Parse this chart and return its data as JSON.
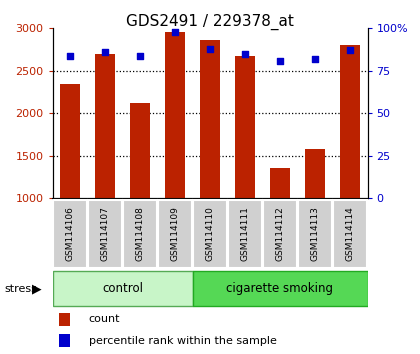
{
  "title": "GDS2491 / 229378_at",
  "samples": [
    "GSM114106",
    "GSM114107",
    "GSM114108",
    "GSM114109",
    "GSM114110",
    "GSM114111",
    "GSM114112",
    "GSM114113",
    "GSM114114"
  ],
  "counts": [
    2340,
    2700,
    2120,
    2960,
    2860,
    2680,
    1360,
    1580,
    2800
  ],
  "percentiles": [
    84,
    86,
    84,
    98,
    88,
    85,
    81,
    82,
    87
  ],
  "ctrl_count": 4,
  "smoke_count": 5,
  "group_labels": [
    "control",
    "cigarette smoking"
  ],
  "group_colors": [
    "#c8f5c8",
    "#55d855"
  ],
  "group_edge_colors": [
    "#55aa55",
    "#22aa22"
  ],
  "bar_color": "#bb2200",
  "dot_color": "#0000cc",
  "ylim_left": [
    1000,
    3000
  ],
  "ylim_right": [
    0,
    100
  ],
  "yticks_left": [
    1000,
    1500,
    2000,
    2500,
    3000
  ],
  "yticks_right": [
    0,
    25,
    50,
    75,
    100
  ],
  "bg_color": "#ffffff",
  "bar_width": 0.55,
  "title_fontsize": 11,
  "tick_fontsize": 8,
  "sample_fontsize": 6.5,
  "group_fontsize": 8.5,
  "legend_fontsize": 8,
  "stress_fontsize": 8
}
